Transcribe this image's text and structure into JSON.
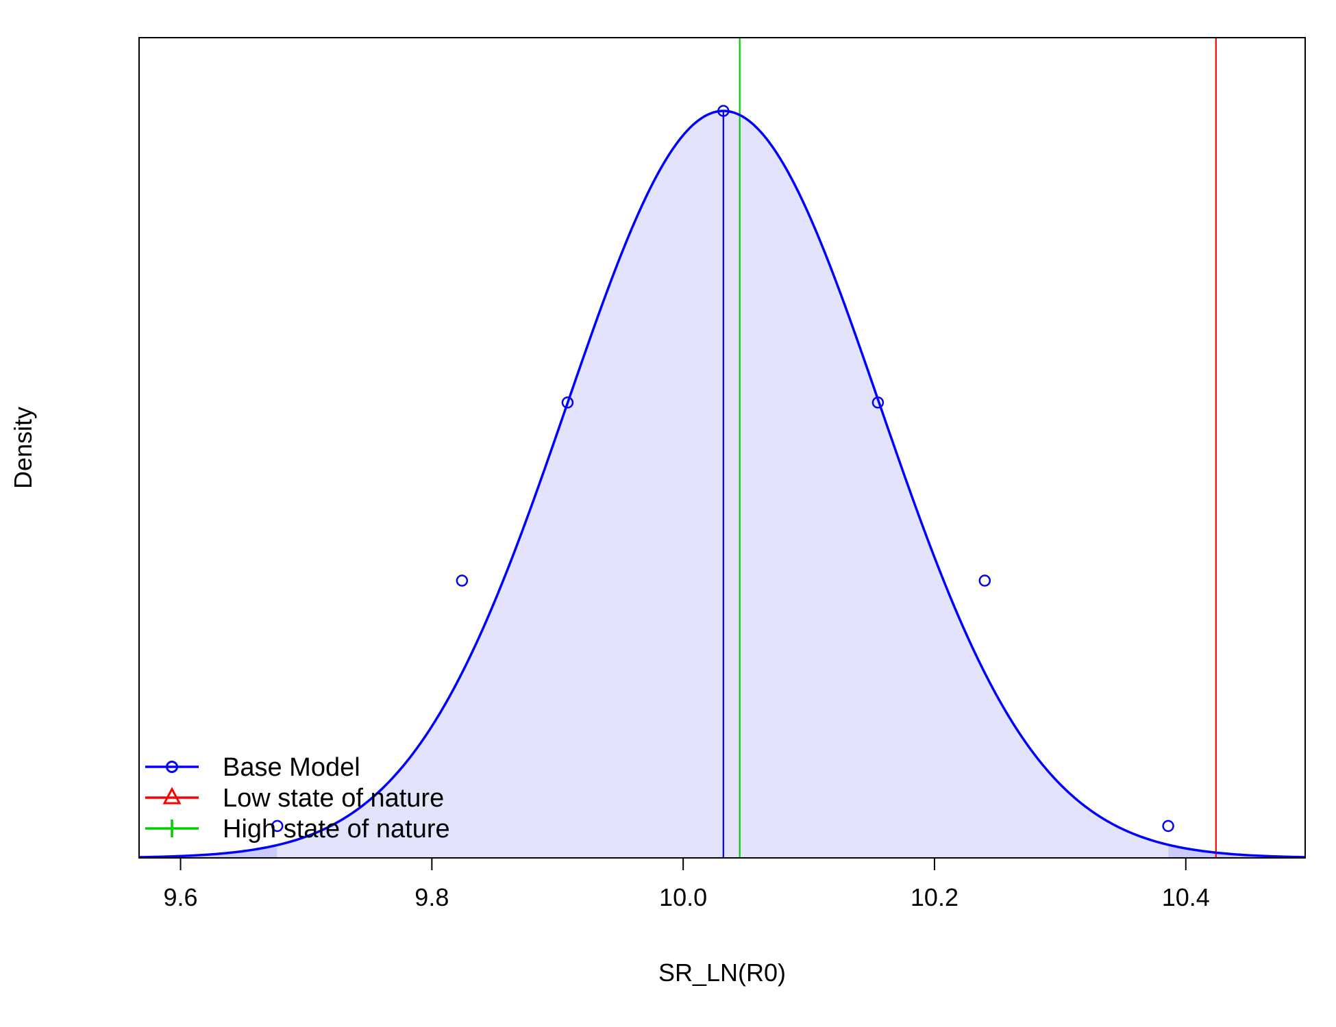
{
  "chart_data": {
    "type": "area",
    "xlabel": "SR_LN(R0)",
    "ylabel": "Density",
    "xlim": [
      9.567,
      10.495
    ],
    "xticks": [
      9.6,
      9.8,
      10.0,
      10.2,
      10.4
    ],
    "xtick_labels": [
      "9.6",
      "9.8",
      "10.0",
      "10.2",
      "10.4"
    ],
    "y_ticks_shown": false,
    "grid": false,
    "legend_position": "bottom-left",
    "distribution": {
      "shape": "normal",
      "mean": 10.032,
      "sd": 0.1245,
      "ci_lower": 9.677,
      "ci_upper": 10.386
    },
    "point_markers": {
      "x": [
        9.677,
        9.824,
        9.908,
        10.032,
        10.155,
        10.24,
        10.386
      ],
      "relative_density": [
        0.0427,
        0.3712,
        0.6096,
        1.0,
        0.6096,
        0.3712,
        0.0427
      ]
    },
    "vertical_lines": [
      {
        "name": "Base Model",
        "x": 10.032,
        "color": "#0000ff"
      },
      {
        "name": "Low state of nature",
        "x": 10.424,
        "color": "#ff0000"
      },
      {
        "name": "High state of nature",
        "x": 10.045,
        "color": "#00cd00"
      }
    ],
    "series": [
      {
        "name": "Base Model",
        "color": "#0000ff",
        "marker": "circle"
      },
      {
        "name": "Low state of nature",
        "color": "#ff0000",
        "marker": "triangle"
      },
      {
        "name": "High state of nature",
        "color": "#00cd00",
        "marker": "plus"
      }
    ],
    "fill_colors": {
      "interval": "#e3e3fc",
      "tails": "#cbcbfa"
    }
  }
}
